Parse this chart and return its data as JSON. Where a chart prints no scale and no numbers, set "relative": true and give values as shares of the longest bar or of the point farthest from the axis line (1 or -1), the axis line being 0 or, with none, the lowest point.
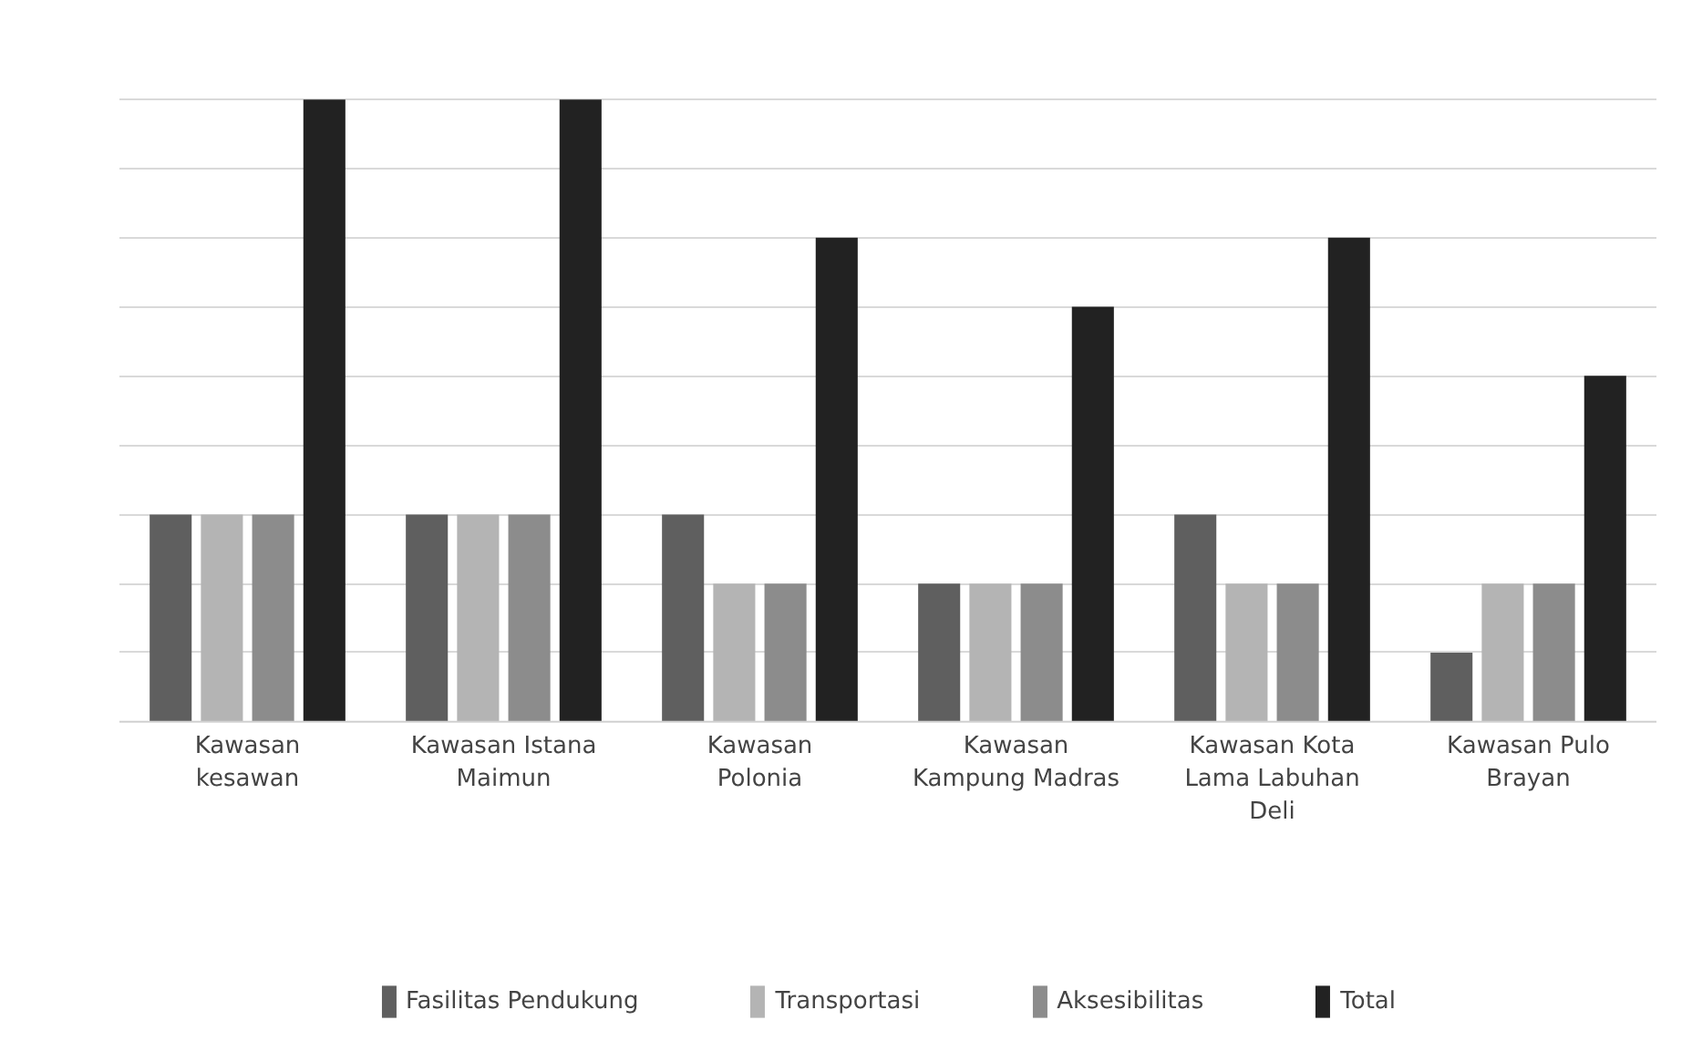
{
  "chart_data": {
    "type": "bar",
    "relative": true,
    "grid": "y",
    "legend": "bottom",
    "categories": [
      "Kawasan kesawan",
      "Kawasan Istana Maimun",
      "Kawasan Polonia",
      "Kawasan Kampung Madras",
      "Kawasan Kota Lama Labuhan Deli",
      "Kawasan Pulo Brayan"
    ],
    "series": [
      {
        "name": "Fasilitas Pendukung",
        "color": "#5f5f5f",
        "values": [
          0.333,
          0.333,
          0.333,
          0.222,
          0.333,
          0.111
        ]
      },
      {
        "name": "Transportasi",
        "color": "#b4b4b4",
        "values": [
          0.333,
          0.333,
          0.222,
          0.222,
          0.222,
          0.222
        ]
      },
      {
        "name": "Aksesibilitas",
        "color": "#8c8c8c",
        "values": [
          0.333,
          0.333,
          0.222,
          0.222,
          0.222,
          0.222
        ]
      },
      {
        "name": "Total",
        "color": "#222222",
        "values": [
          1,
          1,
          0.778,
          0.667,
          0.778,
          0.556
        ]
      }
    ]
  }
}
